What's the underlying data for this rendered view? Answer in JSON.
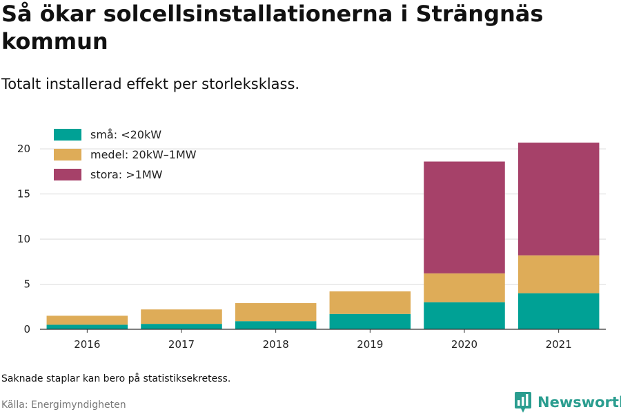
{
  "header": {
    "title": "Så ökar solcellsinstallationerna i Strängnäs kommun",
    "subtitle": "Totalt installerad effekt per storleksklass."
  },
  "footer": {
    "note": "Saknade staplar kan bero på statistiksekretess.",
    "source": "Källa: Energimyndigheten",
    "brand": "Newsworthy",
    "brand_icon": "bar-chart-pin-icon"
  },
  "colors": {
    "small": "#00a195",
    "medium": "#deac58",
    "large": "#a64169",
    "grid": "#d9d9d9",
    "axis": "#333333",
    "brand": "#2a9d8f"
  },
  "chart_data": {
    "type": "bar",
    "stacked": true,
    "categories": [
      "2016",
      "2017",
      "2018",
      "2019",
      "2020",
      "2021"
    ],
    "series": [
      {
        "name": "små: <20kW",
        "color": "#00a195",
        "values": [
          0.5,
          0.6,
          0.9,
          1.7,
          3.0,
          4.0
        ]
      },
      {
        "name": "medel: 20kW–1MW",
        "color": "#deac58",
        "values": [
          1.0,
          1.6,
          2.0,
          2.5,
          3.2,
          4.2
        ]
      },
      {
        "name": "stora: >1MW",
        "color": "#a64169",
        "values": [
          0,
          0,
          0,
          0,
          12.4,
          12.5
        ]
      }
    ],
    "ylim": [
      0,
      22
    ],
    "yticks": [
      0,
      5,
      10,
      15,
      20
    ],
    "xlabel": "",
    "ylabel": "",
    "grid": true,
    "legend": "top-left"
  }
}
